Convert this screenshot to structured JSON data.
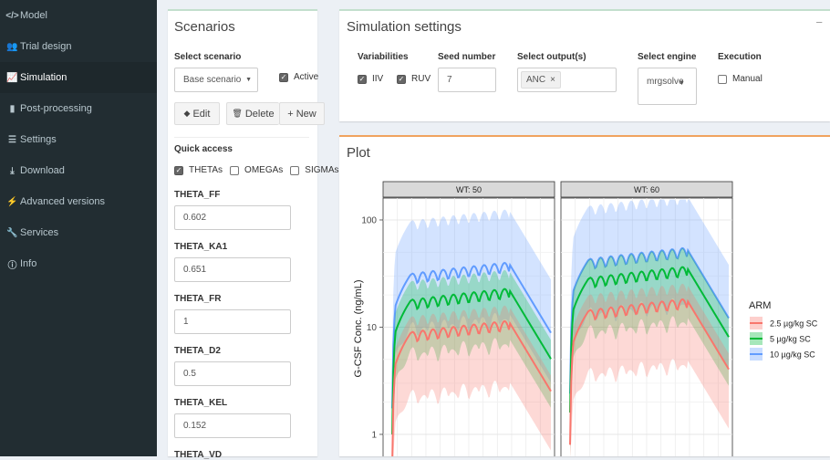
{
  "sidebar": {
    "items": [
      {
        "label": "Model",
        "icon": "code-icon"
      },
      {
        "label": "Trial design",
        "icon": "users-icon"
      },
      {
        "label": "Simulation",
        "icon": "line-chart-icon"
      },
      {
        "label": "Post-processing",
        "icon": "bar-chart-icon"
      },
      {
        "label": "Settings",
        "icon": "sliders-icon"
      },
      {
        "label": "Download",
        "icon": "download-icon"
      },
      {
        "label": "Advanced versions",
        "icon": "bolt-icon"
      },
      {
        "label": "Services",
        "icon": "wrench-icon"
      },
      {
        "label": "Info",
        "icon": "info-icon"
      }
    ],
    "active_index": 2
  },
  "scenarios": {
    "title": "Scenarios",
    "select_label": "Select scenario",
    "selected": "Base scenario",
    "active_label": "Active",
    "active_checked": true,
    "edit_label": "Edit",
    "delete_label": "Delete",
    "new_label": "New",
    "quick_access_label": "Quick access",
    "quick": [
      {
        "label": "THETAs",
        "checked": true
      },
      {
        "label": "OMEGAs",
        "checked": false
      },
      {
        "label": "SIGMAs",
        "checked": false
      }
    ],
    "params": [
      {
        "label": "THETA_FF",
        "value": "0.602"
      },
      {
        "label": "THETA_KA1",
        "value": "0.651"
      },
      {
        "label": "THETA_FR",
        "value": "1"
      },
      {
        "label": "THETA_D2",
        "value": "0.5"
      },
      {
        "label": "THETA_KEL",
        "value": "0.152"
      },
      {
        "label": "THETA_VD",
        "value": ""
      }
    ]
  },
  "sim_settings": {
    "title": "Simulation settings",
    "collapse_symbol": "−",
    "variabilities_label": "Variabilities",
    "iiv_label": "IIV",
    "iiv_checked": true,
    "ruv_label": "RUV",
    "ruv_checked": true,
    "seed_label": "Seed number",
    "seed_value": "7",
    "output_label": "Select output(s)",
    "output_tag": "ANC",
    "output_tag_remove": "×",
    "engine_label": "Select engine",
    "engine_value": "mrgsolve",
    "execution_label": "Execution",
    "manual_label": "Manual",
    "manual_checked": false
  },
  "plot": {
    "title": "Plot"
  },
  "chart_data": {
    "type": "area",
    "ylabel": "G-CSF Conc. (ng/mL)",
    "xlabel": "",
    "yscale": "log",
    "yticks": [
      1,
      10,
      100
    ],
    "ytick_labels": [
      "1",
      "10",
      "100"
    ],
    "grid": true,
    "legend_title": "ARM",
    "legend_position": "right",
    "panels": [
      "WT: 50",
      "WT: 60"
    ],
    "series": [
      {
        "name": "2.5 µg/kg SC",
        "color": "#f8766d",
        "median_wt50": 10,
        "median_wt60": 16,
        "lo": 2.8,
        "hi": 14
      },
      {
        "name": "5 µg/kg SC",
        "color": "#00ba38",
        "median_wt50": 20,
        "median_wt60": 32,
        "lo": 7,
        "hi": 30
      },
      {
        "name": "10 µg/kg SC",
        "color": "#619cff",
        "median_wt50": 35,
        "median_wt60": 48,
        "lo": 12,
        "hi": 110
      }
    ]
  }
}
